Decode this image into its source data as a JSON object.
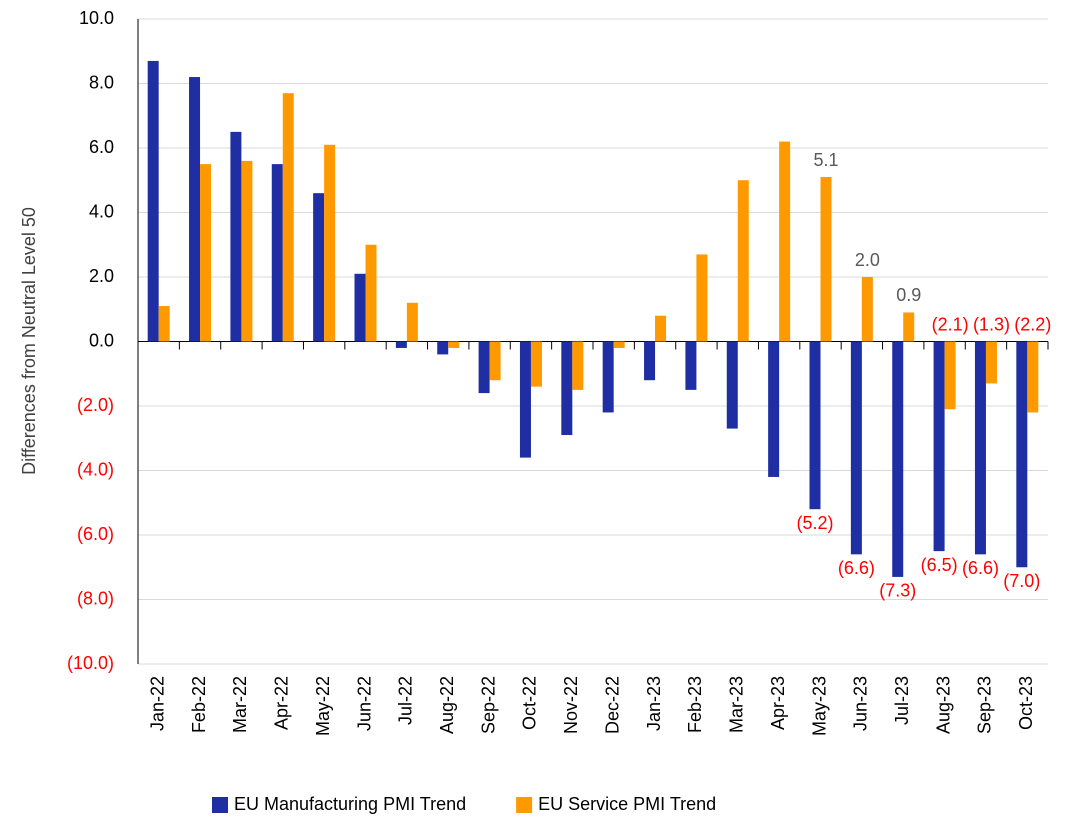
{
  "chart_data": {
    "type": "bar",
    "y_label": "Differences from Neutral Level 50",
    "categories": [
      "Jan-22",
      "Feb-22",
      "Mar-22",
      "Apr-22",
      "May-22",
      "Jun-22",
      "Jul-22",
      "Aug-22",
      "Sep-22",
      "Oct-22",
      "Nov-22",
      "Dec-22",
      "Jan-23",
      "Feb-23",
      "Mar-23",
      "Apr-23",
      "May-23",
      "Jun-23",
      "Jul-23",
      "Aug-23",
      "Sep-23",
      "Oct-23"
    ],
    "series": [
      {
        "name": "EU Manufacturing PMI Trend",
        "color": "#1f2fa3",
        "values": [
          8.7,
          8.2,
          6.5,
          5.5,
          4.6,
          2.1,
          -0.2,
          -0.4,
          -1.6,
          -3.6,
          -2.9,
          -2.2,
          -1.2,
          -1.5,
          -2.7,
          -4.2,
          -5.2,
          -6.6,
          -7.3,
          -6.5,
          -6.6,
          -7.0
        ],
        "value_labels": [
          null,
          null,
          null,
          null,
          null,
          null,
          null,
          null,
          null,
          null,
          null,
          null,
          null,
          null,
          null,
          null,
          "(5.2)",
          "(6.6)",
          "(7.3)",
          "(6.5)",
          "(6.6)",
          "(7.0)"
        ]
      },
      {
        "name": "EU Service PMI Trend",
        "color": "#ff9900",
        "values": [
          1.1,
          5.5,
          5.6,
          7.7,
          6.1,
          3.0,
          1.2,
          -0.2,
          -1.2,
          -1.4,
          -1.5,
          -0.2,
          0.8,
          2.7,
          5.0,
          6.2,
          5.1,
          2.0,
          0.9,
          -2.1,
          -1.3,
          -2.2
        ],
        "value_labels": [
          null,
          null,
          null,
          null,
          null,
          null,
          null,
          null,
          null,
          null,
          null,
          null,
          null,
          null,
          null,
          null,
          "5.1",
          "2.0",
          "0.9",
          "(2.1)",
          "(1.3)",
          "(2.2)"
        ]
      }
    ],
    "ylim": [
      -10,
      10
    ],
    "yticks": [
      {
        "value": -10,
        "label": "(10.0)"
      },
      {
        "value": -8,
        "label": "(8.0)"
      },
      {
        "value": -6,
        "label": "(6.0)"
      },
      {
        "value": -4,
        "label": "(4.0)"
      },
      {
        "value": -2,
        "label": "(2.0)"
      },
      {
        "value": 0,
        "label": "0.0"
      },
      {
        "value": 2,
        "label": "2.0"
      },
      {
        "value": 4,
        "label": "4.0"
      },
      {
        "value": 6,
        "label": "6.0"
      },
      {
        "value": 8,
        "label": "8.0"
      },
      {
        "value": 10,
        "label": "10.0"
      }
    ],
    "grid": true,
    "legend": "bottom"
  }
}
